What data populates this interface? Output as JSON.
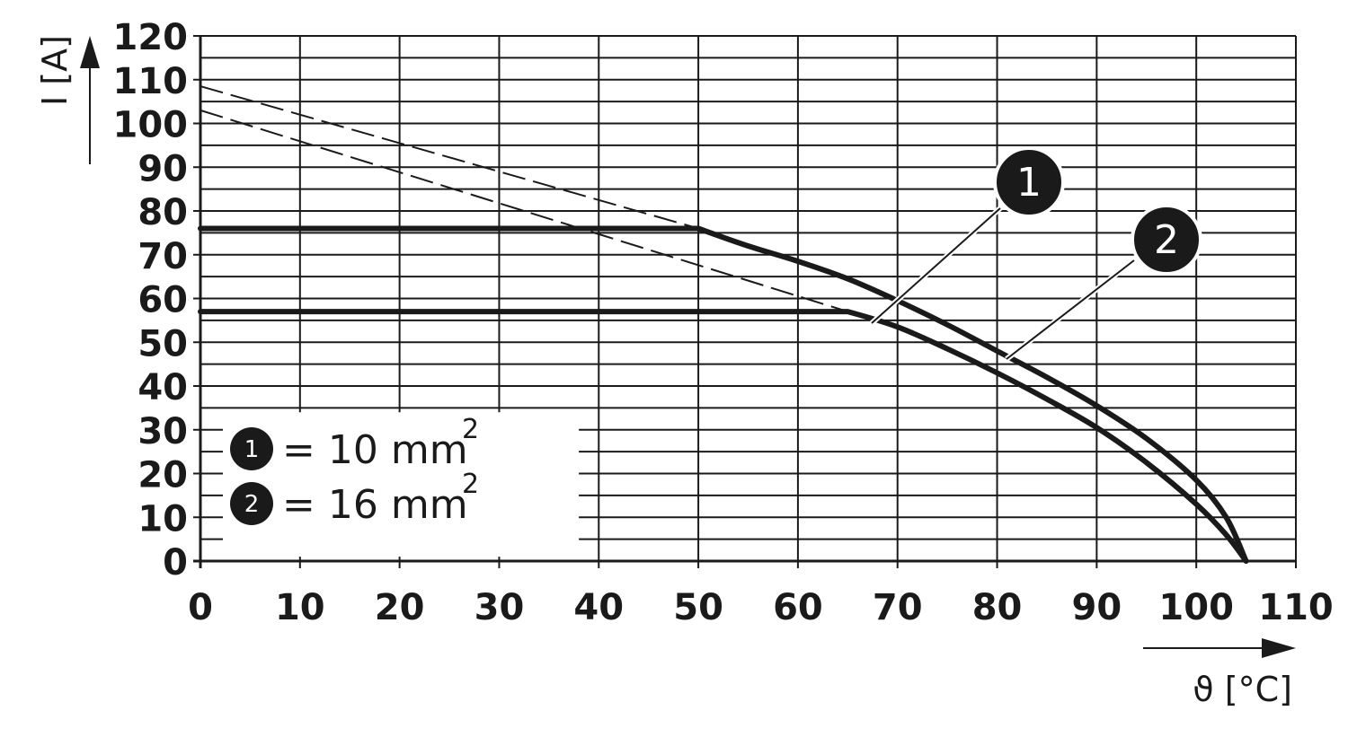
{
  "chart_data": {
    "type": "line",
    "xlabel": "ϑ [°C]",
    "ylabel": "I [A]",
    "xlim": [
      0,
      110
    ],
    "ylim": [
      0,
      120
    ],
    "x_ticks": [
      0,
      10,
      20,
      30,
      40,
      50,
      60,
      70,
      80,
      90,
      100,
      110
    ],
    "y_ticks": [
      0,
      10,
      20,
      30,
      40,
      50,
      60,
      70,
      80,
      90,
      100,
      110,
      120
    ],
    "grid": true,
    "legend_placement": "bottom-left",
    "series": [
      {
        "marker": "1",
        "legend_label": "= 10 mm",
        "legend_sup": "2",
        "x": [
          0,
          65,
          70,
          75,
          80,
          85,
          90,
          95,
          100,
          103,
          105
        ],
        "y": [
          57,
          57,
          53.5,
          48.5,
          43,
          37,
          30.5,
          22.5,
          13,
          6,
          0
        ],
        "dashed_x": [
          0,
          65
        ],
        "dashed_y": [
          103,
          57
        ]
      },
      {
        "marker": "2",
        "legend_label": "= 16 mm",
        "legend_sup": "2",
        "x": [
          0,
          50,
          55,
          60,
          65,
          70,
          75,
          80,
          85,
          90,
          95,
          100,
          103,
          105
        ],
        "y": [
          76,
          76,
          72,
          68.5,
          64.5,
          59.5,
          54,
          48,
          42,
          35.5,
          28,
          18.5,
          10,
          0
        ],
        "dashed_x": [
          0,
          50
        ],
        "dashed_y": [
          108.5,
          76
        ]
      }
    ]
  }
}
